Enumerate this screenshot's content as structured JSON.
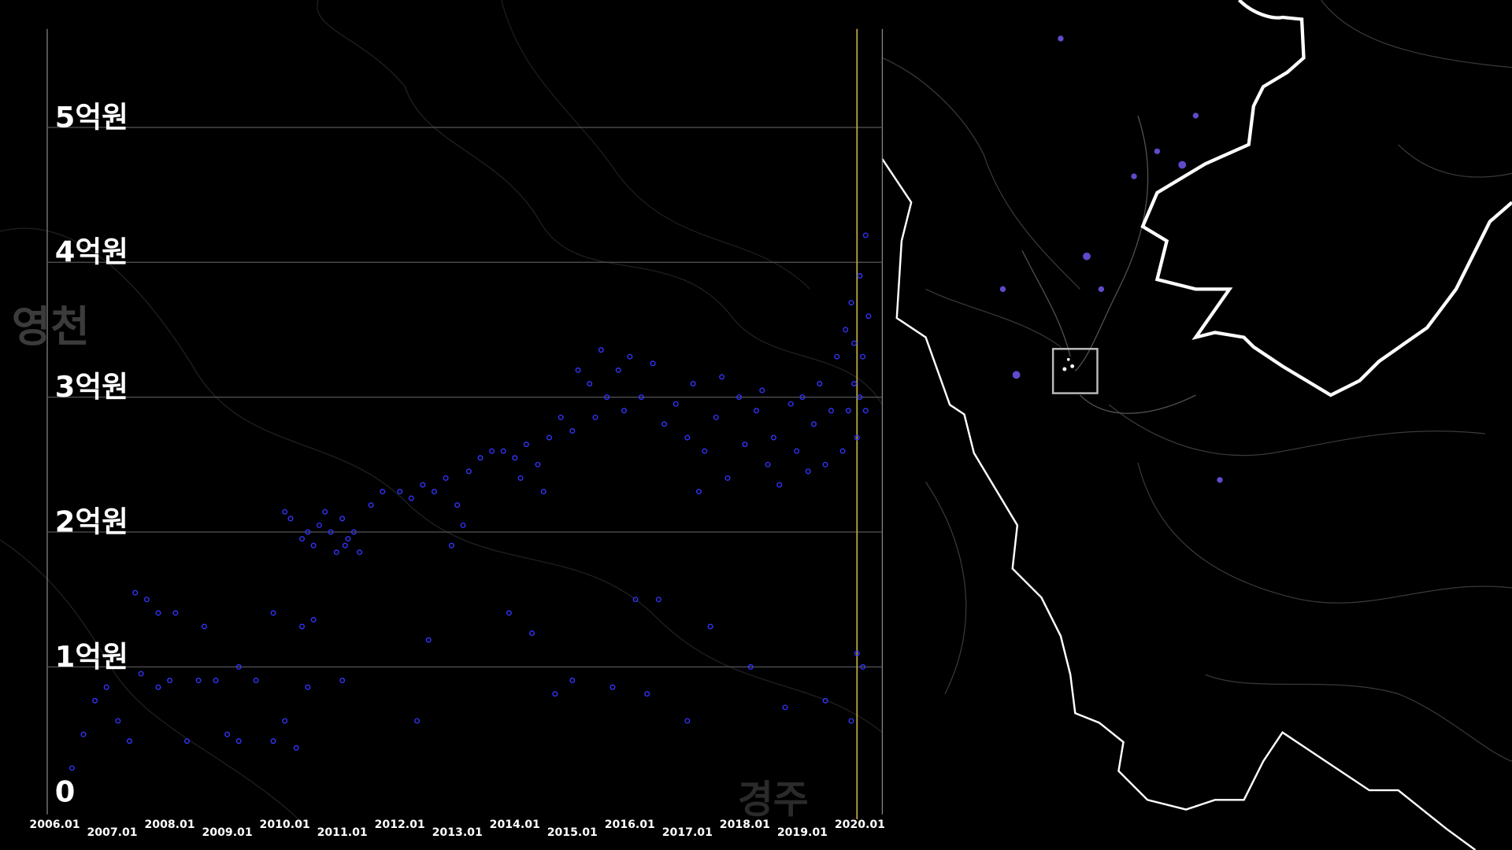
{
  "chart_data": {
    "type": "scatter",
    "x": [
      2006.3,
      2006.5,
      2006.7,
      2006.9,
      2007.1,
      2007.3,
      2007.5,
      2007.8,
      2008.0,
      2008.3,
      2008.5,
      2008.8,
      2009.0,
      2009.2,
      2009.5,
      2009.8,
      2010.0,
      2010.2,
      2010.4,
      2007.4,
      2007.6,
      2007.8,
      2008.1,
      2008.6,
      2009.2,
      2009.8,
      2010.3,
      2010.5,
      2011.0,
      2010.0,
      2010.1,
      2010.3,
      2010.4,
      2010.5,
      2010.6,
      2010.8,
      2010.9,
      2011.0,
      2011.1,
      2011.2,
      2011.3,
      2010.7,
      2011.05,
      2011.5,
      2011.7,
      2012.0,
      2012.2,
      2012.4,
      2012.6,
      2012.8,
      2013.0,
      2013.2,
      2013.4,
      2013.6,
      2013.1,
      2012.9,
      2012.5,
      2012.3,
      2013.8,
      2014.0,
      2014.2,
      2014.4,
      2014.6,
      2014.8,
      2015.0,
      2014.1,
      2014.5,
      2013.9,
      2014.3,
      2014.7,
      2015.0,
      2015.1,
      2015.3,
      2015.5,
      2015.6,
      2015.8,
      2016.0,
      2015.9,
      2015.4,
      2016.2,
      2016.4,
      2016.1,
      2016.5,
      2015.7,
      2016.3,
      2016.6,
      2016.8,
      2017.0,
      2017.1,
      2017.3,
      2017.5,
      2017.7,
      2017.9,
      2018.0,
      2018.2,
      2018.3,
      2018.5,
      2018.6,
      2018.8,
      2018.9,
      2019.0,
      2019.1,
      2019.2,
      2019.3,
      2019.4,
      2017.2,
      2017.6,
      2018.4,
      2019.5,
      2017.4,
      2018.1,
      2018.7,
      2019.4,
      2017.0,
      2019.6,
      2019.7,
      2019.75,
      2019.8,
      2019.85,
      2019.9,
      2019.95,
      2020.0,
      2020.05,
      2020.1,
      2020.15,
      2020.1,
      2019.9,
      2020.0,
      2019.95,
      2020.05,
      2019.85
    ],
    "values": [
      0.25,
      0.5,
      0.75,
      0.85,
      0.6,
      0.45,
      0.95,
      0.85,
      0.9,
      0.45,
      0.9,
      0.9,
      0.5,
      0.45,
      0.9,
      0.45,
      0.6,
      0.4,
      0.85,
      1.55,
      1.5,
      1.4,
      1.4,
      1.3,
      1.0,
      1.4,
      1.3,
      1.35,
      0.9,
      2.15,
      2.1,
      1.95,
      2.0,
      1.9,
      2.05,
      2.0,
      1.85,
      2.1,
      1.95,
      2.0,
      1.85,
      2.15,
      1.9,
      2.2,
      2.3,
      2.3,
      2.25,
      2.35,
      2.3,
      2.4,
      2.2,
      2.45,
      2.55,
      2.6,
      2.05,
      1.9,
      1.2,
      0.6,
      2.6,
      2.55,
      2.65,
      2.5,
      2.7,
      2.85,
      2.75,
      2.4,
      2.3,
      1.4,
      1.25,
      0.8,
      0.9,
      3.2,
      3.1,
      3.35,
      3.0,
      3.2,
      3.3,
      2.9,
      2.85,
      3.0,
      3.25,
      1.5,
      1.5,
      0.85,
      0.8,
      2.8,
      2.95,
      2.7,
      3.1,
      2.6,
      2.85,
      2.4,
      3.0,
      2.65,
      2.9,
      3.05,
      2.7,
      2.35,
      2.95,
      2.6,
      3.0,
      2.45,
      2.8,
      3.1,
      2.5,
      2.3,
      3.15,
      2.5,
      2.9,
      1.3,
      1.0,
      0.7,
      0.75,
      0.6,
      3.3,
      2.6,
      3.5,
      2.9,
      3.7,
      3.1,
      2.7,
      3.9,
      3.3,
      4.2,
      3.6,
      2.9,
      3.4,
      3.0,
      1.1,
      1.0,
      0.6
    ],
    "color": "#3434ff",
    "xlim": [
      2005.87,
      2020.39
    ],
    "ylim": [
      0,
      5.73
    ],
    "xticks": [
      {
        "value": 2006,
        "label": "2006.01"
      },
      {
        "value": 2007,
        "label": "2007.01"
      },
      {
        "value": 2008,
        "label": "2008.01"
      },
      {
        "value": 2009,
        "label": "2009.01"
      },
      {
        "value": 2010,
        "label": "2010.01"
      },
      {
        "value": 2011,
        "label": "2011.01"
      },
      {
        "value": 2012,
        "label": "2012.01"
      },
      {
        "value": 2013,
        "label": "2013.01"
      },
      {
        "value": 2014,
        "label": "2014.01"
      },
      {
        "value": 2015,
        "label": "2015.01"
      },
      {
        "value": 2016,
        "label": "2016.01"
      },
      {
        "value": 2017,
        "label": "2017.01"
      },
      {
        "value": 2018,
        "label": "2018.01"
      },
      {
        "value": 2019,
        "label": "2019.01"
      },
      {
        "value": 2020,
        "label": "2020.01"
      }
    ],
    "yticks": [
      0,
      {
        "value": 1,
        "label": "1억원"
      },
      {
        "value": 2,
        "label": "2억원"
      },
      {
        "value": 3,
        "label": "3억원"
      },
      {
        "value": 4,
        "label": "4억원"
      },
      {
        "value": 5,
        "label": "5억원"
      }
    ],
    "grid": true,
    "cursor_x": 2019.95,
    "map_labels": [
      "영천",
      "경주"
    ]
  }
}
